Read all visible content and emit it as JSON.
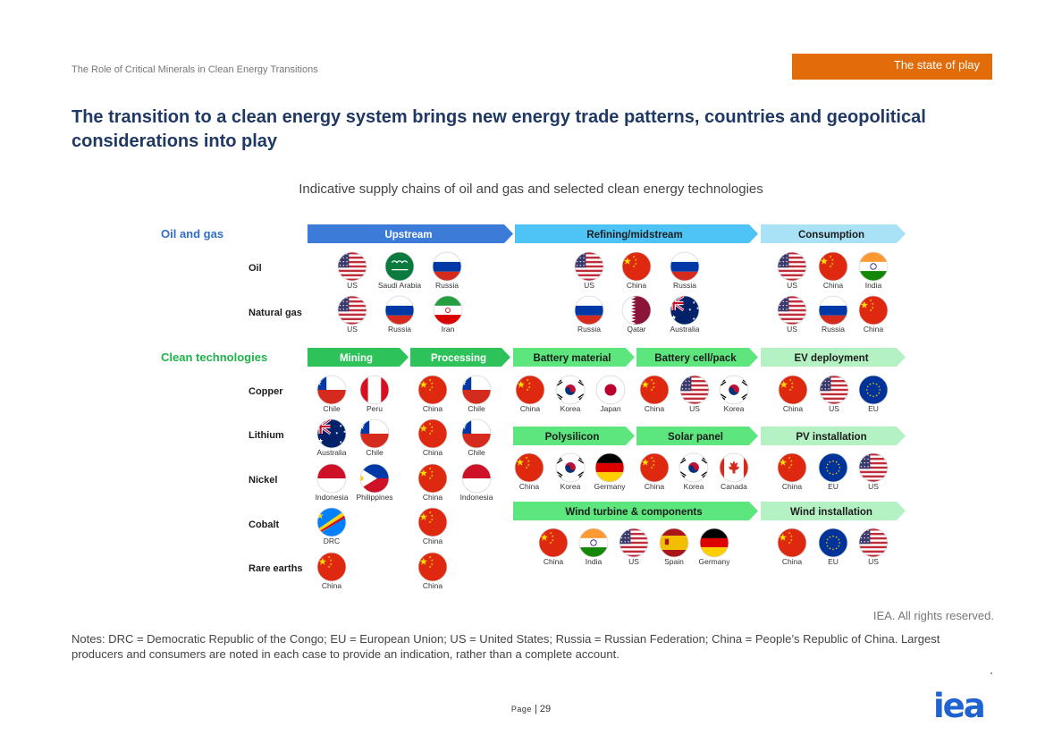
{
  "header": {
    "report_title": "The Role of Critical Minerals in Clean Energy Transitions",
    "section_tag": "The state of play"
  },
  "title": "The transition to a clean energy system brings new energy trade patterns, countries and geopolitical considerations into play",
  "figure_title": "Indicative supply chains of oil and gas and selected clean energy technologies",
  "colors": {
    "blue_dark": "#3d7bd9",
    "blue_mid": "#4dc4f5",
    "blue_light": "#a9e2f7",
    "green_dark": "#2ec25a",
    "green_mid": "#5ee67e",
    "green_light": "#b5f2c3",
    "section_oil": "#2f6fcf",
    "section_clean": "#1fb34b",
    "tag": "#e36c0a",
    "logo": "#1f63d1"
  },
  "diagram": {
    "sections": [
      {
        "label": "Oil and gas"
      },
      {
        "label": "Clean technologies"
      }
    ],
    "oil_stages": [
      {
        "label": "Upstream"
      },
      {
        "label": "Refining/midstream"
      },
      {
        "label": "Consumption"
      }
    ],
    "clean_stages": [
      {
        "label": "Mining"
      },
      {
        "label": "Processing"
      },
      {
        "label": "Battery material"
      },
      {
        "label": "Battery cell/pack"
      },
      {
        "label": "EV deployment"
      }
    ],
    "solar_stages": [
      {
        "label": "Polysilicon"
      },
      {
        "label": "Solar panel"
      },
      {
        "label": "PV installation"
      }
    ],
    "wind_stages": [
      {
        "label": "Wind turbine & components"
      },
      {
        "label": "Wind installation"
      }
    ],
    "row_labels": [
      {
        "label": "Oil"
      },
      {
        "label": "Natural gas"
      },
      {
        "label": "Copper"
      },
      {
        "label": "Lithium"
      },
      {
        "label": "Nickel"
      },
      {
        "label": "Cobalt"
      },
      {
        "label": "Rare earths"
      }
    ],
    "flags": [
      {
        "country": "us",
        "label": "US"
      },
      {
        "country": "saudi",
        "label": "Saudi Arabia"
      },
      {
        "country": "russia",
        "label": "Russia"
      },
      {
        "country": "us",
        "label": "US"
      },
      {
        "country": "china",
        "label": "China"
      },
      {
        "country": "russia",
        "label": "Russia"
      },
      {
        "country": "us",
        "label": "US"
      },
      {
        "country": "china",
        "label": "China"
      },
      {
        "country": "india",
        "label": "India"
      },
      {
        "country": "us",
        "label": "US"
      },
      {
        "country": "russia",
        "label": "Russia"
      },
      {
        "country": "iran",
        "label": "Iran"
      },
      {
        "country": "russia",
        "label": "Russia"
      },
      {
        "country": "qatar",
        "label": "Qatar"
      },
      {
        "country": "australia",
        "label": "Australia"
      },
      {
        "country": "us",
        "label": "US"
      },
      {
        "country": "russia",
        "label": "Russia"
      },
      {
        "country": "china",
        "label": "China"
      },
      {
        "country": "chile",
        "label": "Chile"
      },
      {
        "country": "peru",
        "label": "Peru"
      },
      {
        "country": "china",
        "label": "China"
      },
      {
        "country": "chile",
        "label": "Chile"
      },
      {
        "country": "china",
        "label": "China"
      },
      {
        "country": "korea",
        "label": "Korea"
      },
      {
        "country": "japan",
        "label": "Japan"
      },
      {
        "country": "china",
        "label": "China"
      },
      {
        "country": "us",
        "label": "US"
      },
      {
        "country": "korea",
        "label": "Korea"
      },
      {
        "country": "china",
        "label": "China"
      },
      {
        "country": "us",
        "label": "US"
      },
      {
        "country": "eu",
        "label": "EU"
      },
      {
        "country": "australia",
        "label": "Australia"
      },
      {
        "country": "chile",
        "label": "Chile"
      },
      {
        "country": "china",
        "label": "China"
      },
      {
        "country": "chile",
        "label": "Chile"
      },
      {
        "country": "china",
        "label": "China"
      },
      {
        "country": "korea",
        "label": "Korea"
      },
      {
        "country": "germany",
        "label": "Germany"
      },
      {
        "country": "china",
        "label": "China"
      },
      {
        "country": "korea",
        "label": "Korea"
      },
      {
        "country": "canada",
        "label": "Canada"
      },
      {
        "country": "china",
        "label": "China"
      },
      {
        "country": "eu",
        "label": "EU"
      },
      {
        "country": "us",
        "label": "US"
      },
      {
        "country": "indonesia",
        "label": "Indonesia"
      },
      {
        "country": "philippines",
        "label": "Philippines"
      },
      {
        "country": "china",
        "label": "China"
      },
      {
        "country": "indonesia",
        "label": "Indonesia"
      },
      {
        "country": "drc",
        "label": "DRC"
      },
      {
        "country": "china",
        "label": "China"
      },
      {
        "country": "china",
        "label": "China"
      },
      {
        "country": "india",
        "label": "India"
      },
      {
        "country": "us",
        "label": "US"
      },
      {
        "country": "spain",
        "label": "Spain"
      },
      {
        "country": "germany",
        "label": "Germany"
      },
      {
        "country": "china",
        "label": "China"
      },
      {
        "country": "eu",
        "label": "EU"
      },
      {
        "country": "us",
        "label": "US"
      },
      {
        "country": "china",
        "label": "China"
      },
      {
        "country": "china",
        "label": "China"
      }
    ]
  },
  "rights": "IEA. All rights reserved.",
  "notes": "Notes: DRC = Democratic Republic of the Congo; EU = European Union; US = United States; Russia = Russian Federation; China = People’s Republic of China. Largest producers and consumers are noted in each case to provide an indication, rather than a complete account.",
  "footer": {
    "page_word": "Page",
    "page_sep": " | ",
    "page_number": "29",
    "logo": "iea"
  }
}
